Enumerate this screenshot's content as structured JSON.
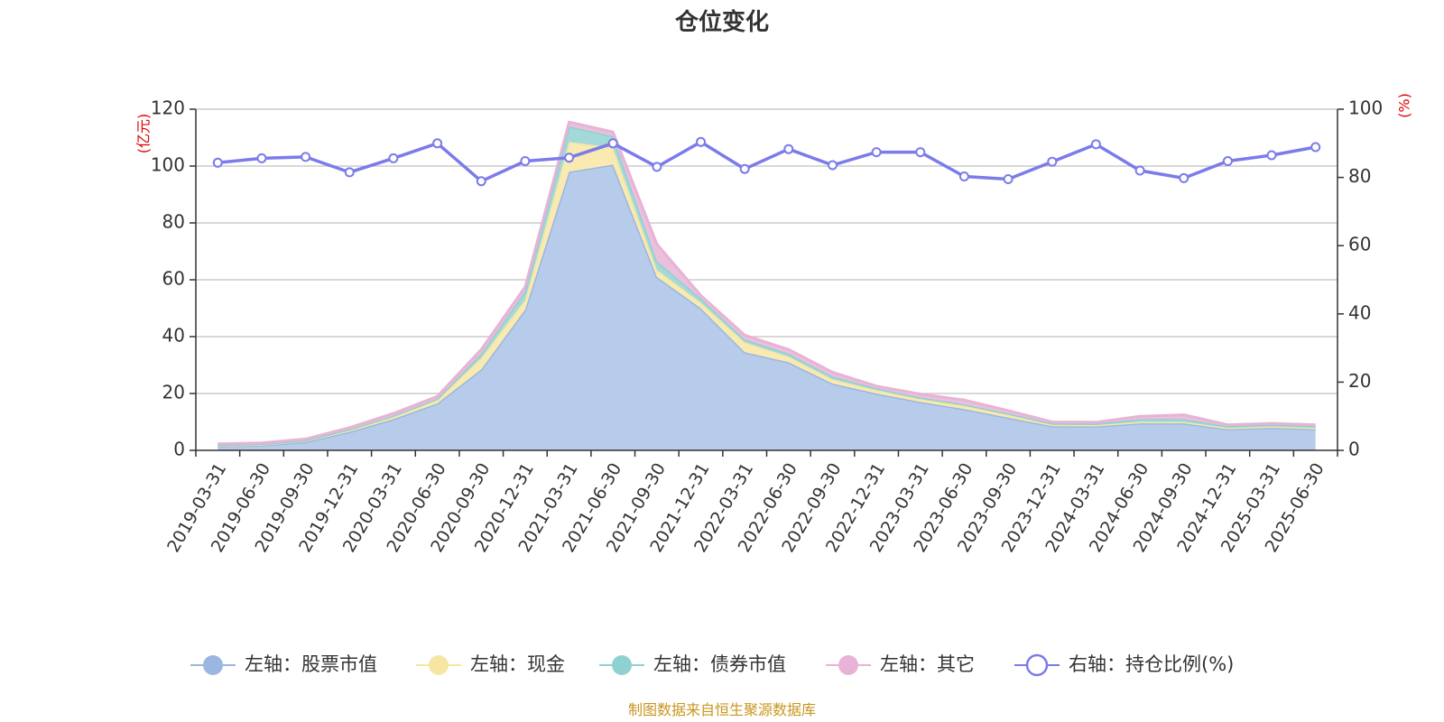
{
  "chart_data": {
    "type": "area",
    "title": "仓位变化",
    "source": "制图数据来自恒生聚源数据库",
    "y_left": {
      "unit": "(亿元)",
      "ylim": [
        0,
        120
      ],
      "ticks": [
        "0",
        "20",
        "40",
        "60",
        "80",
        "100",
        "120"
      ]
    },
    "y_right": {
      "unit": "(%)",
      "ylim": [
        0,
        100
      ],
      "ticks": [
        "0",
        "20",
        "40",
        "60",
        "80",
        "100"
      ]
    },
    "grid": true,
    "legend_position": "bottom",
    "categories": [
      "2019-03-31",
      "2019-06-30",
      "2019-09-30",
      "2019-12-31",
      "2020-03-31",
      "2020-06-30",
      "2020-09-30",
      "2020-12-31",
      "2021-03-31",
      "2021-06-30",
      "2021-09-30",
      "2021-12-31",
      "2022-03-31",
      "2022-06-30",
      "2022-09-30",
      "2022-12-31",
      "2023-03-31",
      "2023-06-30",
      "2023-09-30",
      "2023-12-31",
      "2024-03-31",
      "2024-06-30",
      "2024-09-30",
      "2024-12-31",
      "2025-03-31",
      "2025-06-30"
    ],
    "series": [
      {
        "name": "左轴：股票市值",
        "axis": "left",
        "type": "area",
        "color": "#9bb6e0",
        "fill": "#b7cceb",
        "values": [
          1.5,
          1.8,
          3.0,
          6.5,
          11.0,
          16.5,
          28.5,
          49.5,
          98.0,
          100.5,
          61.0,
          50.0,
          34.5,
          31.0,
          23.5,
          20.0,
          17.0,
          14.5,
          11.5,
          8.5,
          8.5,
          9.5,
          9.5,
          7.5,
          8.0,
          7.5
        ]
      },
      {
        "name": "左轴：现金",
        "axis": "left",
        "type": "area",
        "color": "#f6e6a4",
        "fill": "#f8eab0",
        "values": [
          0.3,
          0.3,
          0.4,
          0.6,
          0.8,
          1.2,
          4.0,
          3.5,
          10.5,
          6.0,
          2.5,
          2.0,
          3.5,
          2.0,
          1.5,
          1.2,
          1.0,
          1.2,
          1.0,
          0.5,
          0.4,
          0.5,
          0.5,
          0.4,
          0.4,
          0.4
        ]
      },
      {
        "name": "左轴：债券市值",
        "axis": "left",
        "type": "area",
        "color": "#8fd1d1",
        "fill": "#a3d9d9",
        "values": [
          0.2,
          0.2,
          0.2,
          0.3,
          0.4,
          0.5,
          1.5,
          3.0,
          5.5,
          4.0,
          3.0,
          1.5,
          1.0,
          1.0,
          1.0,
          0.6,
          0.6,
          0.5,
          0.5,
          0.5,
          0.5,
          1.0,
          1.0,
          0.6,
          0.6,
          0.6
        ]
      },
      {
        "name": "左轴：其它",
        "axis": "left",
        "type": "area",
        "color": "#e8b3d6",
        "fill": "#ebc0dc",
        "values": [
          0.3,
          0.3,
          0.4,
          0.6,
          0.8,
          0.8,
          1.5,
          1.5,
          1.5,
          1.5,
          6.0,
          1.0,
          1.5,
          1.5,
          1.5,
          0.8,
          1.2,
          1.5,
          1.0,
          0.5,
          0.5,
          1.0,
          1.5,
          0.5,
          0.5,
          0.5
        ]
      },
      {
        "name": "右轴：持仓比例(%)",
        "axis": "right",
        "type": "line",
        "color": "#7b7bea",
        "values": [
          84.3,
          85.6,
          86.0,
          81.5,
          85.6,
          90.0,
          78.9,
          84.8,
          85.8,
          90.0,
          83.1,
          90.4,
          82.5,
          88.3,
          83.6,
          87.4,
          87.4,
          80.3,
          79.5,
          84.6,
          89.7,
          82.0,
          79.8,
          84.8,
          86.5,
          88.9
        ]
      }
    ]
  }
}
